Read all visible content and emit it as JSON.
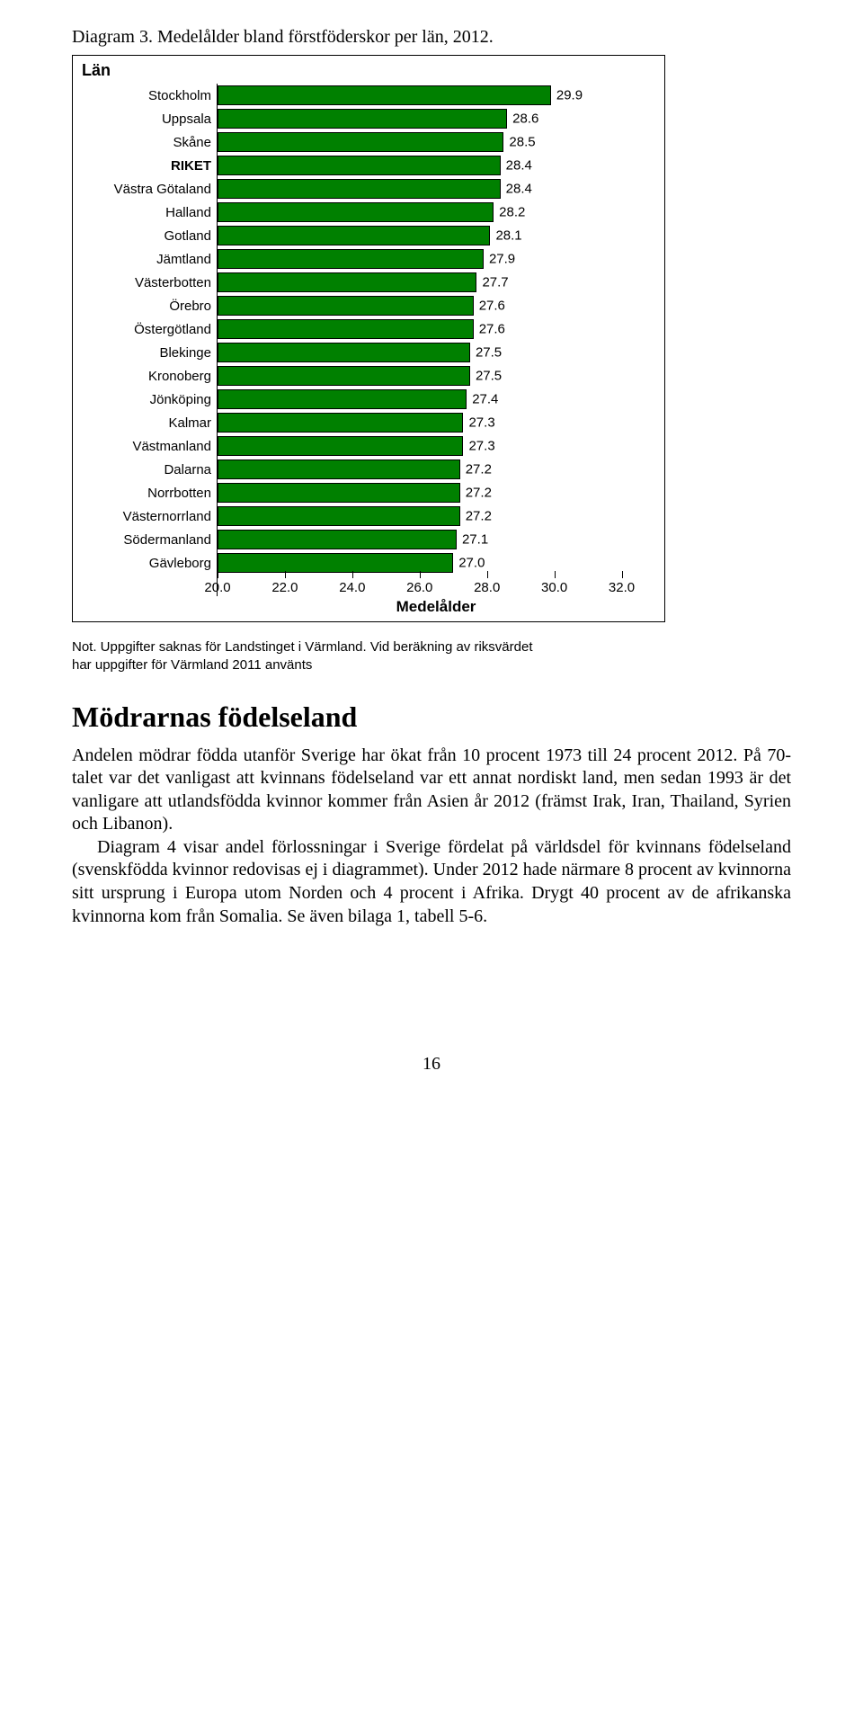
{
  "caption": "Diagram 3. Medelålder bland förstföderskor per län, 2012.",
  "chart": {
    "title": "Län",
    "axis_label": "Medelålder",
    "xmin": 20.0,
    "xmax": 33.0,
    "ticks": [
      20.0,
      22.0,
      24.0,
      26.0,
      28.0,
      30.0,
      32.0
    ],
    "tick_labels": [
      "20.0",
      "22.0",
      "24.0",
      "26.0",
      "28.0",
      "30.0",
      "32.0"
    ],
    "bar_color": "#008000",
    "bar_border": "#000000",
    "label_fontsize": 15,
    "rows": [
      {
        "label": "Stockholm",
        "value": 29.9,
        "display": "29.9",
        "bold": false
      },
      {
        "label": "Uppsala",
        "value": 28.6,
        "display": "28.6",
        "bold": false
      },
      {
        "label": "Skåne",
        "value": 28.5,
        "display": "28.5",
        "bold": false
      },
      {
        "label": "RIKET",
        "value": 28.4,
        "display": "28.4",
        "bold": true
      },
      {
        "label": "Västra Götaland",
        "value": 28.4,
        "display": "28.4",
        "bold": false
      },
      {
        "label": "Halland",
        "value": 28.2,
        "display": "28.2",
        "bold": false
      },
      {
        "label": "Gotland",
        "value": 28.1,
        "display": "28.1",
        "bold": false
      },
      {
        "label": "Jämtland",
        "value": 27.9,
        "display": "27.9",
        "bold": false
      },
      {
        "label": "Västerbotten",
        "value": 27.7,
        "display": "27.7",
        "bold": false
      },
      {
        "label": "Örebro",
        "value": 27.6,
        "display": "27.6",
        "bold": false
      },
      {
        "label": "Östergötland",
        "value": 27.6,
        "display": "27.6",
        "bold": false
      },
      {
        "label": "Blekinge",
        "value": 27.5,
        "display": "27.5",
        "bold": false
      },
      {
        "label": "Kronoberg",
        "value": 27.5,
        "display": "27.5",
        "bold": false
      },
      {
        "label": "Jönköping",
        "value": 27.4,
        "display": "27.4",
        "bold": false
      },
      {
        "label": "Kalmar",
        "value": 27.3,
        "display": "27.3",
        "bold": false
      },
      {
        "label": "Västmanland",
        "value": 27.3,
        "display": "27.3",
        "bold": false
      },
      {
        "label": "Dalarna",
        "value": 27.2,
        "display": "27.2",
        "bold": false
      },
      {
        "label": "Norrbotten",
        "value": 27.2,
        "display": "27.2",
        "bold": false
      },
      {
        "label": "Västernorrland",
        "value": 27.2,
        "display": "27.2",
        "bold": false
      },
      {
        "label": "Södermanland",
        "value": 27.1,
        "display": "27.1",
        "bold": false
      },
      {
        "label": "Gävleborg",
        "value": 27.0,
        "display": "27.0",
        "bold": false
      }
    ]
  },
  "note_line1": "Not. Uppgifter saknas för Landstinget i Värmland. Vid beräkning av riksvärdet",
  "note_line2": "har uppgifter för Värmland 2011 använts",
  "heading": "Mödrarnas födelseland",
  "para1": "Andelen mödrar födda utanför Sverige har ökat från 10 procent 1973 till 24 procent 2012. På 70-talet var det vanligast att kvinnans födelseland var ett annat nordiskt land, men sedan 1993 är det vanligare att utlandsfödda kvinnor kommer från Asien år 2012 (främst Irak, Iran, Thailand, Syrien och Libanon).",
  "para2": "Diagram 4 visar andel förlossningar i Sverige fördelat på världsdel för kvinnans födelseland (svenskfödda kvinnor redovisas ej i diagrammet). Under 2012 hade närmare 8 procent av kvinnorna sitt ursprung i Europa utom Norden och 4 procent i Afrika. Drygt 40 procent av de afrikanska kvinnorna kom från Somalia. Se även bilaga 1, tabell 5-6.",
  "page_number": "16"
}
